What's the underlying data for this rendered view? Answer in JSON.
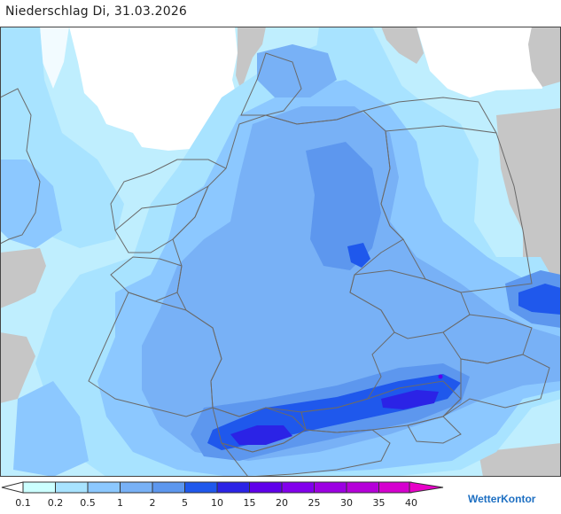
{
  "header": {
    "title": "Niederschlag Di, 31.03.2026"
  },
  "legend": {
    "labels": [
      "0.1",
      "0.2",
      "0.5",
      "1",
      "2",
      "5",
      "10",
      "15",
      "20",
      "25",
      "30",
      "35",
      "40"
    ],
    "colors": [
      "#ccffff",
      "#a8e3ff",
      "#8cc8ff",
      "#78b1f6",
      "#5d97ee",
      "#1f58ec",
      "#2b23e6",
      "#5f00ea",
      "#8200ec",
      "#9c00e2",
      "#b500d9",
      "#d500cf",
      "#e800c8"
    ]
  },
  "brand": {
    "name": "WetterKontor"
  },
  "map": {
    "background_color": "#bfeefe",
    "land_outside_color": "#c6c6c6",
    "border_color": "#6a6a6a"
  }
}
